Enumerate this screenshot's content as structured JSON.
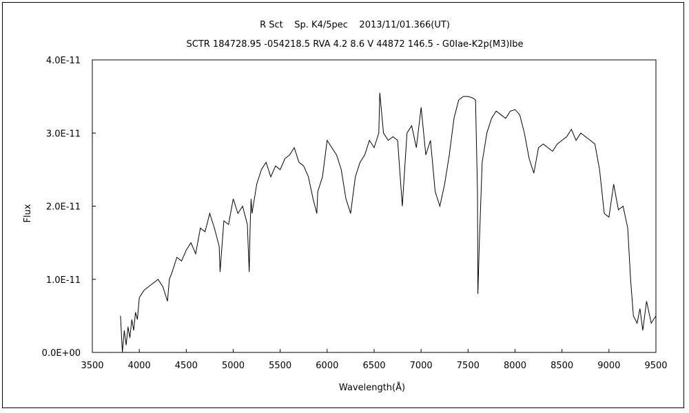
{
  "chart_data": {
    "type": "line",
    "title": "R Sct    Sp. K4/5pec    2013/11/01.366(UT)",
    "subtitle": "SCTR 184728.95 -054218.5 RVA 4.2 8.6 V 44872 146.5 - G0Iae-K2p(M3)Ibe",
    "xlabel": "Wavelength(Å)",
    "ylabel": "Flux",
    "xlim": [
      3500,
      9500
    ],
    "ylim": [
      0,
      4e-11
    ],
    "xticks": [
      3500,
      4000,
      4500,
      5000,
      5500,
      6000,
      6500,
      7000,
      7500,
      8000,
      8500,
      9000,
      9500
    ],
    "xtick_labels": [
      "3500",
      "4000",
      "4500",
      "5000",
      "5500",
      "6000",
      "6500",
      "7000",
      "7500",
      "8000",
      "8500",
      "9000",
      "9500"
    ],
    "yticks": [
      0,
      1e-11,
      2e-11,
      3e-11,
      4e-11
    ],
    "ytick_labels": [
      "0.0E+00",
      "1.0E-11",
      "2.0E-11",
      "3.0E-11",
      "4.0E-11"
    ],
    "grid": false,
    "line_color": "#000000",
    "series": [
      {
        "x": [
          3800,
          3820,
          3840,
          3860,
          3880,
          3900,
          3920,
          3940,
          3960,
          3980,
          4000,
          4050,
          4100,
          4150,
          4200,
          4250,
          4300,
          4320,
          4350,
          4400,
          4450,
          4500,
          4550,
          4600,
          4650,
          4700,
          4750,
          4800,
          4850,
          4860,
          4900,
          4950,
          5000,
          5050,
          5100,
          5150,
          5170,
          5180,
          5190,
          5200,
          5250,
          5300,
          5350,
          5400,
          5450,
          5500,
          5550,
          5600,
          5650,
          5700,
          5750,
          5800,
          5850,
          5890,
          5900,
          5950,
          6000,
          6050,
          6100,
          6150,
          6200,
          6250,
          6300,
          6350,
          6400,
          6450,
          6500,
          6550,
          6560,
          6600,
          6650,
          6700,
          6750,
          6800,
          6850,
          6900,
          6950,
          7000,
          7050,
          7100,
          7150,
          7200,
          7250,
          7300,
          7350,
          7400,
          7450,
          7500,
          7550,
          7580,
          7600,
          7605,
          7620,
          7650,
          7700,
          7750,
          7800,
          7850,
          7900,
          7950,
          8000,
          8050,
          8100,
          8150,
          8200,
          8250,
          8300,
          8350,
          8400,
          8450,
          8500,
          8550,
          8600,
          8650,
          8700,
          8750,
          8800,
          8850,
          8900,
          8950,
          9000,
          9050,
          9100,
          9150,
          9200,
          9230,
          9260,
          9300,
          9330,
          9360,
          9400,
          9450,
          9500
        ],
        "values": [
          5e-12,
          0.0,
          3e-12,
          1e-12,
          3.5e-12,
          2e-12,
          4.5e-12,
          3e-12,
          5.5e-12,
          4.5e-12,
          7.5e-12,
          8.5e-12,
          9e-12,
          9.5e-12,
          1e-11,
          9e-12,
          7e-12,
          1e-11,
          1.1e-11,
          1.3e-11,
          1.25e-11,
          1.4e-11,
          1.5e-11,
          1.35e-11,
          1.7e-11,
          1.65e-11,
          1.9e-11,
          1.7e-11,
          1.45e-11,
          1.1e-11,
          1.8e-11,
          1.75e-11,
          2.1e-11,
          1.9e-11,
          2e-11,
          1.75e-11,
          1.1e-11,
          1.7e-11,
          2.1e-11,
          1.9e-11,
          2.3e-11,
          2.5e-11,
          2.6e-11,
          2.4e-11,
          2.55e-11,
          2.5e-11,
          2.65e-11,
          2.7e-11,
          2.8e-11,
          2.6e-11,
          2.55e-11,
          2.4e-11,
          2.1e-11,
          1.9e-11,
          2.2e-11,
          2.4e-11,
          2.9e-11,
          2.8e-11,
          2.7e-11,
          2.5e-11,
          2.1e-11,
          1.9e-11,
          2.4e-11,
          2.6e-11,
          2.7e-11,
          2.9e-11,
          2.8e-11,
          3e-11,
          3.55e-11,
          3e-11,
          2.9e-11,
          2.95e-11,
          2.9e-11,
          2e-11,
          3e-11,
          3.1e-11,
          2.8e-11,
          3.35e-11,
          2.7e-11,
          2.9e-11,
          2.2e-11,
          2e-11,
          2.3e-11,
          2.7e-11,
          3.2e-11,
          3.45e-11,
          3.5e-11,
          3.5e-11,
          3.48e-11,
          3.45e-11,
          2.2e-11,
          8e-12,
          1.5e-11,
          2.6e-11,
          3e-11,
          3.2e-11,
          3.3e-11,
          3.25e-11,
          3.2e-11,
          3.3e-11,
          3.32e-11,
          3.25e-11,
          3e-11,
          2.65e-11,
          2.45e-11,
          2.8e-11,
          2.85e-11,
          2.8e-11,
          2.75e-11,
          2.85e-11,
          2.9e-11,
          2.95e-11,
          3.05e-11,
          2.9e-11,
          3e-11,
          2.95e-11,
          2.9e-11,
          2.85e-11,
          2.5e-11,
          1.9e-11,
          1.85e-11,
          2.3e-11,
          1.95e-11,
          2e-11,
          1.7e-11,
          1e-11,
          5e-12,
          4e-12,
          6e-12,
          3e-12,
          7e-12,
          4e-12,
          5e-12
        ]
      }
    ]
  }
}
